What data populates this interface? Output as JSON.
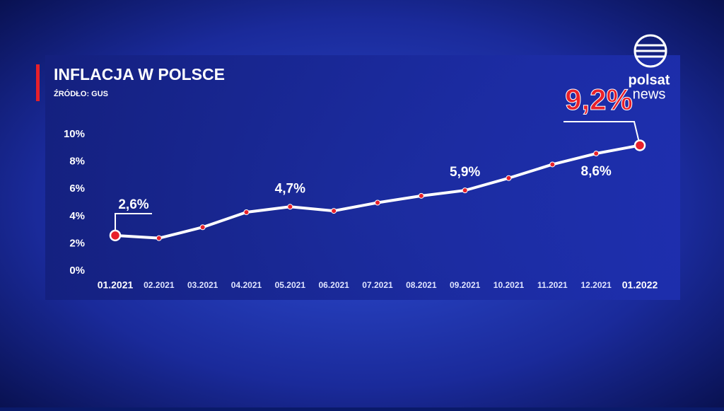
{
  "chart_data": {
    "type": "line",
    "title": "INFLACJA W POLSCE",
    "subtitle": "ŹRÓDŁO: GUS",
    "categories": [
      "01.2021",
      "02.2021",
      "03.2021",
      "04.2021",
      "05.2021",
      "06.2021",
      "07.2021",
      "08.2021",
      "09.2021",
      "10.2021",
      "11.2021",
      "12.2021",
      "01.2022"
    ],
    "series": [
      {
        "name": "Inflacja",
        "color": "#ffffff",
        "values": [
          2.6,
          2.4,
          3.2,
          4.3,
          4.7,
          4.4,
          5.0,
          5.5,
          5.9,
          6.8,
          7.8,
          8.6,
          9.2
        ],
        "value_labels": [
          "2,6%",
          null,
          null,
          null,
          "4,7%",
          null,
          null,
          null,
          "5,9%",
          null,
          null,
          "8,6%",
          "9,2%"
        ]
      }
    ],
    "marker_color": "#e8202a",
    "ylim": [
      0,
      10
    ],
    "yticks": [
      {
        "value": 0,
        "label": "0%"
      },
      {
        "value": 2,
        "label": "2%"
      },
      {
        "value": 4,
        "label": "4%"
      },
      {
        "value": 6,
        "label": "6%"
      },
      {
        "value": 8,
        "label": "8%"
      },
      {
        "value": 10,
        "label": "10%"
      }
    ],
    "grid": false
  },
  "logo": {
    "line1": "polsat",
    "line2": "news"
  }
}
